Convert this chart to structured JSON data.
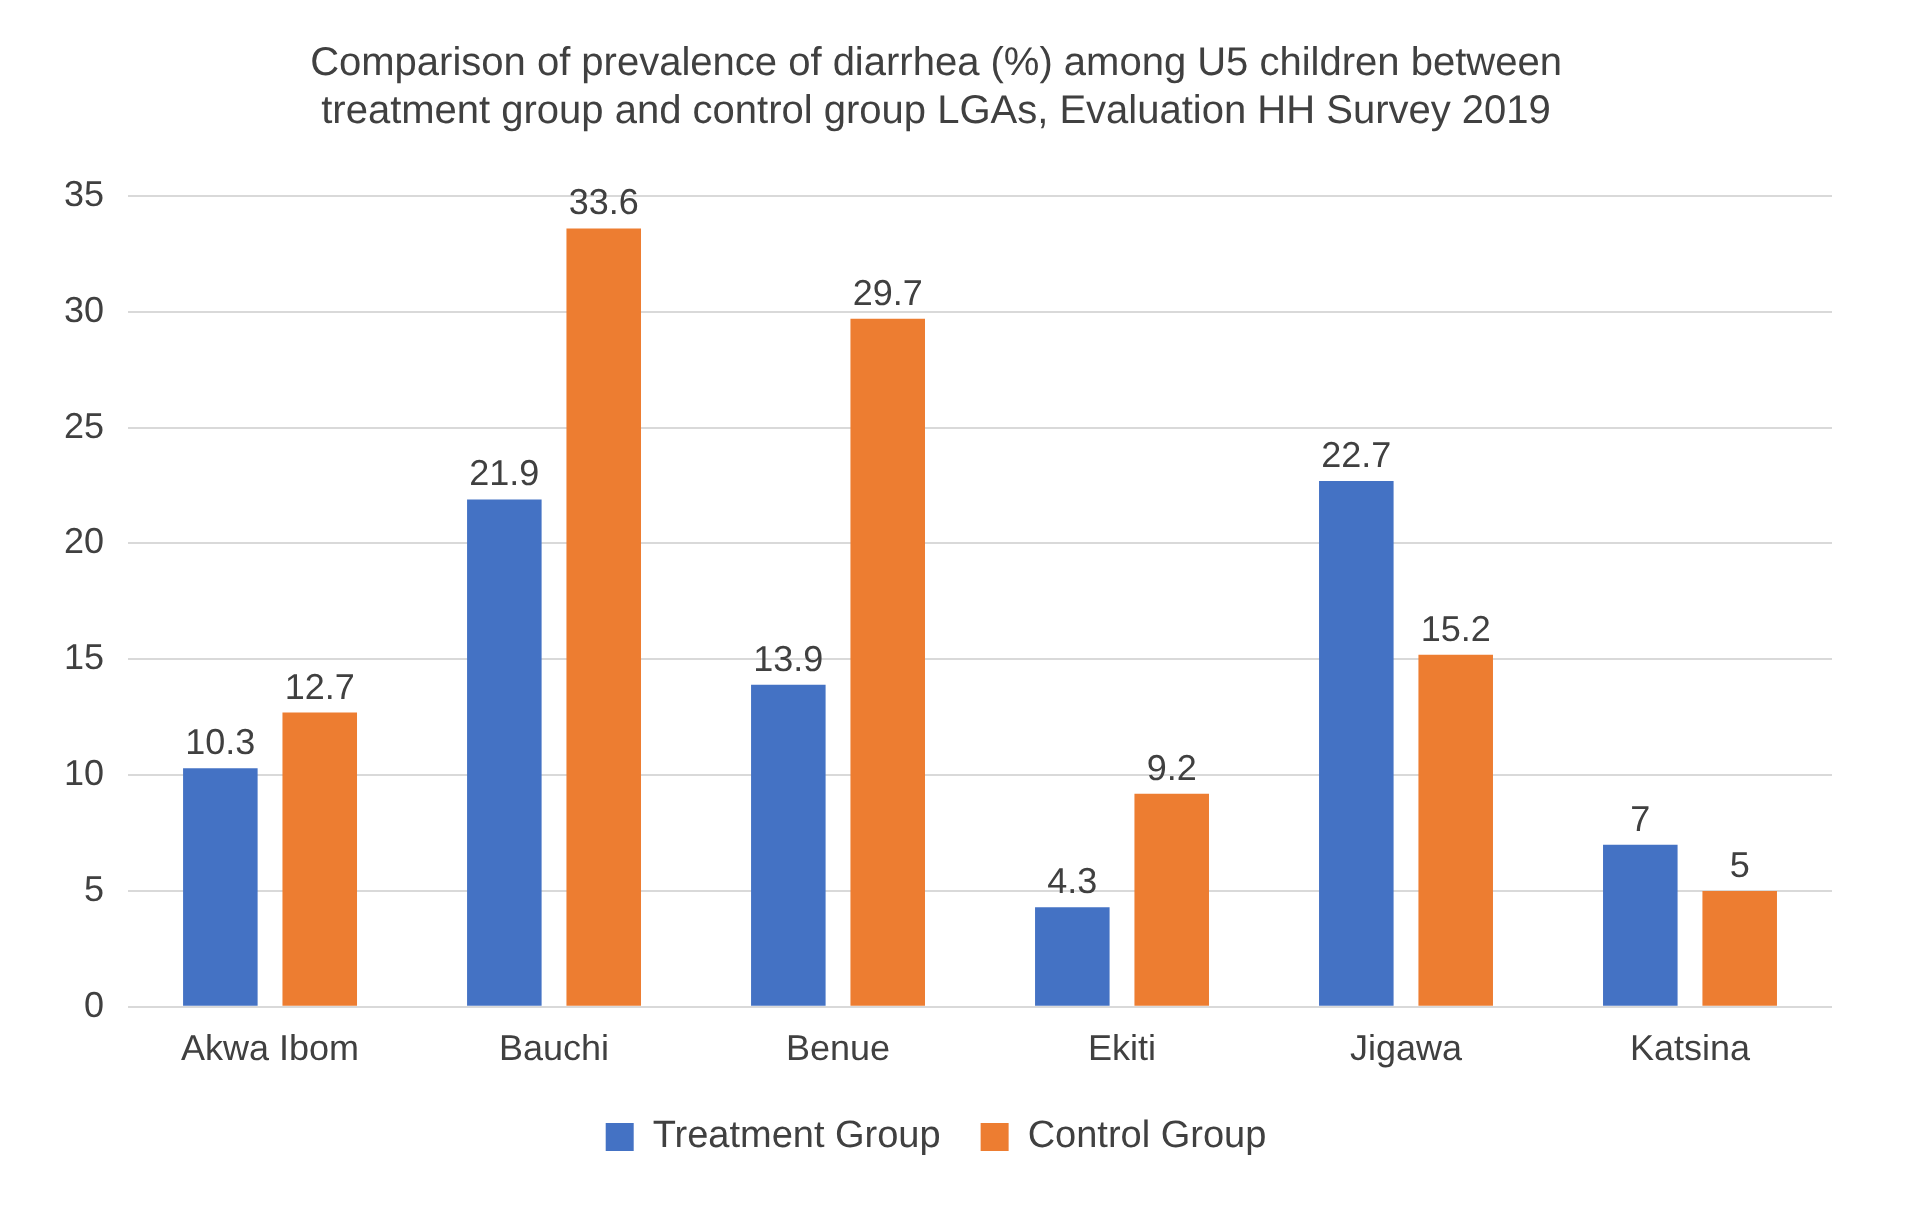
{
  "chart_data": {
    "type": "bar",
    "title": [
      "Comparison of prevalence of diarrhea (%) among U5 children between",
      "treatment group and control group LGAs, Evaluation HH Survey 2019"
    ],
    "categories": [
      "Akwa Ibom",
      "Bauchi",
      "Benue",
      "Ekiti",
      "Jigawa",
      "Katsina"
    ],
    "series": [
      {
        "name": "Treatment Group",
        "color": "#4472c4",
        "values": [
          10.3,
          21.9,
          13.9,
          4.3,
          22.7,
          7
        ]
      },
      {
        "name": "Control Group",
        "color": "#ed7d31",
        "values": [
          12.7,
          33.6,
          29.7,
          9.2,
          15.2,
          5
        ]
      }
    ],
    "ylim": [
      0,
      35
    ],
    "yticks": [
      0,
      5,
      10,
      15,
      20,
      25,
      30,
      35
    ],
    "grid": "y",
    "legend": "bottom",
    "data_labels": true
  }
}
